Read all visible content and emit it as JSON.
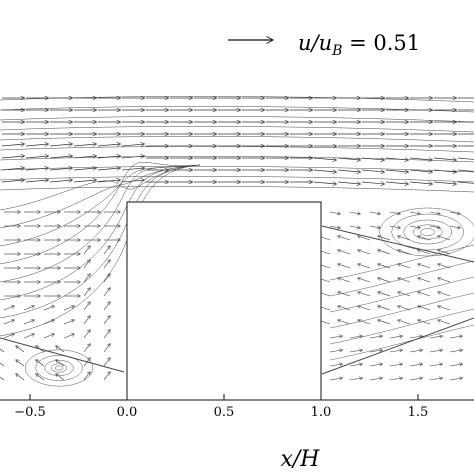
{
  "chart_data": {
    "type": "vector-field",
    "reference_vector_label": "u/u_B = 0.51",
    "reference_vector_magnitude": 0.51,
    "xlabel": "x/H",
    "ylabel": "",
    "xlim": [
      -0.63,
      1.83
    ],
    "xticks": [
      -0.5,
      0.0,
      0.5,
      1.0,
      1.5
    ],
    "xtick_labels": [
      "−0.5",
      "0.0",
      "0.5",
      "1.0",
      "1.5"
    ],
    "obstacle": {
      "x": [
        0.0,
        1.0
      ],
      "y_top_fraction_of_field": 0.62
    },
    "grid": false,
    "recirculation_zones": [
      {
        "name": "upstream-corner-vortex",
        "x": -0.35,
        "description": ""
      },
      {
        "name": "wake-vortex",
        "x": 1.55,
        "description": ""
      }
    ]
  },
  "labels": {
    "ref_text": "u/u",
    "ref_sub": "B",
    "ref_value": " = 0.51",
    "x_axis": "x/H"
  }
}
